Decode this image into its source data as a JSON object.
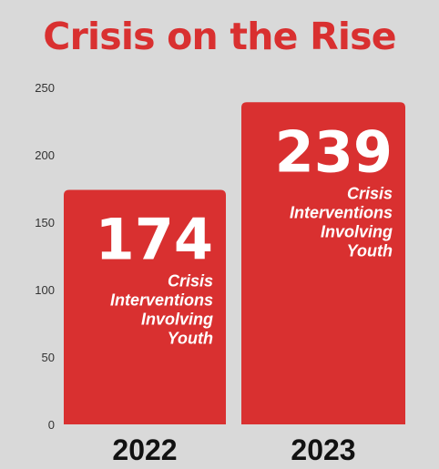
{
  "chart_data": {
    "type": "bar",
    "title": "Crisis on the Rise",
    "categories": [
      "2022",
      "2023"
    ],
    "values": [
      174,
      239
    ],
    "bar_labels": [
      "174",
      "239"
    ],
    "bar_sublabel_lines": [
      "Crisis",
      "Interventions",
      "Involving",
      "Youth"
    ],
    "y_ticks": [
      "0",
      "50",
      "100",
      "150",
      "200",
      "250"
    ],
    "ylim": [
      0,
      250
    ],
    "xlabel": "",
    "ylabel": "",
    "grid": false,
    "legend": "none",
    "colors": {
      "bar": "#d93030",
      "background": "#d9d9d9",
      "title": "#d93030",
      "bar_text": "#ffffff",
      "axis_text": "#333333",
      "category_text": "#111111"
    }
  }
}
